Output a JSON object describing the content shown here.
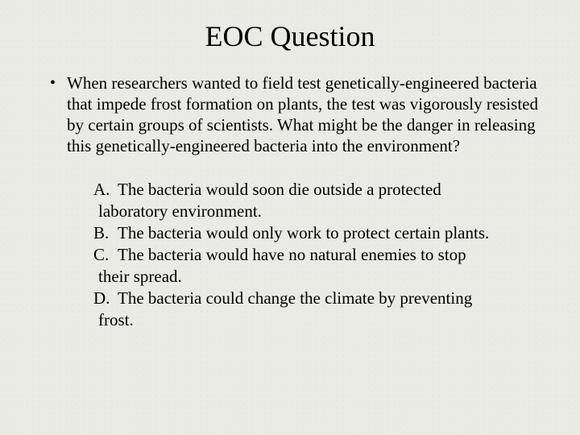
{
  "title": "EOC Question",
  "question": {
    "bullet": "•",
    "text": "When researchers wanted to field test genetically-engineered bacteria that impede frost formation on plants, the test was vigorously resisted by certain groups of scientists.  What might be the danger in releasing this genetically-engineered bacteria into the environment?"
  },
  "answers": [
    {
      "letter": "A.",
      "line1": "The bacteria would soon die outside a protected",
      "line2": "laboratory environment."
    },
    {
      "letter": "B.",
      "line1": "The bacteria would only work to protect certain plants.",
      "line2": ""
    },
    {
      "letter": "C.",
      "line1": "The bacteria would have no natural enemies to stop",
      "line2": "their spread."
    },
    {
      "letter": "D.",
      "line1": "The bacteria could change the climate by preventing",
      "line2": " frost."
    }
  ],
  "colors": {
    "background": "#ebebe6",
    "text": "#000000"
  },
  "typography": {
    "title_fontsize": 36,
    "body_fontsize": 21,
    "font_family": "Times New Roman"
  }
}
